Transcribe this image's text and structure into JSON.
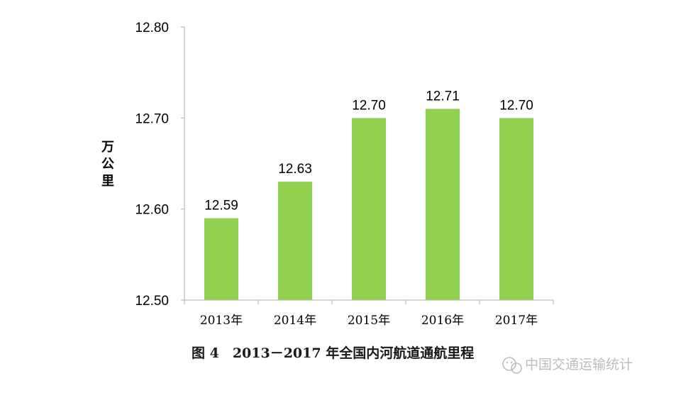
{
  "chart_data": {
    "type": "bar",
    "categories": [
      "2013年",
      "2014年",
      "2015年",
      "2016年",
      "2017年"
    ],
    "values": [
      12.59,
      12.63,
      12.7,
      12.71,
      12.7
    ],
    "data_labels": [
      "12.59",
      "12.63",
      "12.70",
      "12.71",
      "12.70"
    ],
    "ylabel": "万公里",
    "ylim": [
      12.5,
      12.8
    ],
    "yticks": [
      "12.50",
      "12.60",
      "12.70",
      "12.80"
    ],
    "grid": false,
    "bar_color": "#92d050",
    "axis_color": "#bfbfbf",
    "caption": "图 4　2013－2017 年全国内河航道通航里程"
  },
  "watermark": {
    "text": "中国交通运输统计",
    "icon": "wechat-icon"
  }
}
